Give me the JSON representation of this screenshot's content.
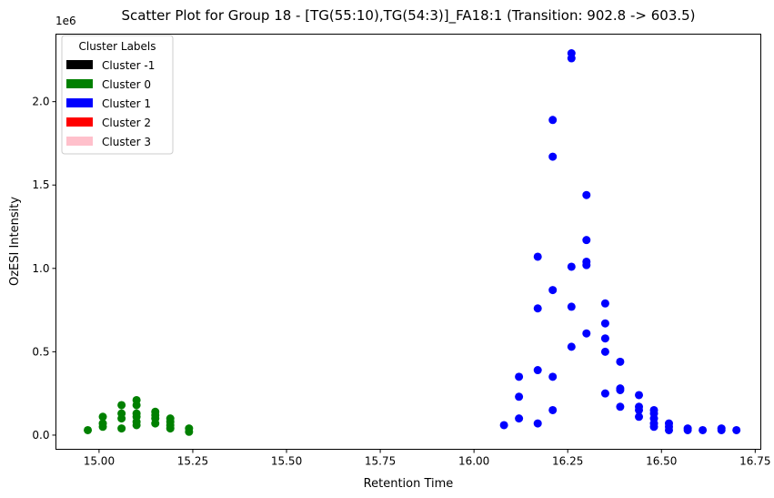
{
  "chart_data": {
    "type": "scatter",
    "title": "Scatter Plot for Group 18 - [TG(55:10),TG(54:3)]_FA18:1 (Transition: 902.8 -> 603.5)",
    "xlabel": "Retention Time",
    "ylabel": "OzESI Intensity",
    "y_multiplier_label": "1e6",
    "xlim": [
      14.885,
      16.765
    ],
    "ylim": [
      -0.085,
      2.405
    ],
    "x_ticks": [
      15.0,
      15.25,
      15.5,
      15.75,
      16.0,
      16.25,
      16.5,
      16.75
    ],
    "x_tick_labels": [
      "15.00",
      "15.25",
      "15.50",
      "15.75",
      "16.00",
      "16.25",
      "16.50",
      "16.75"
    ],
    "y_ticks": [
      0.0,
      0.5,
      1.0,
      1.5,
      2.0
    ],
    "y_tick_labels": [
      "0.0",
      "0.5",
      "1.0",
      "1.5",
      "2.0"
    ],
    "grid": false,
    "legend": {
      "title": "Cluster Labels",
      "placement": "top-left",
      "entries": [
        {
          "label": "Cluster -1",
          "color": "#000000"
        },
        {
          "label": "Cluster 0",
          "color": "#008000"
        },
        {
          "label": "Cluster 1",
          "color": "#0000ff"
        },
        {
          "label": "Cluster 2",
          "color": "#ff0000"
        },
        {
          "label": "Cluster 3",
          "color": "#ffc0cb"
        }
      ]
    },
    "series": [
      {
        "name": "Cluster 0",
        "color": "#008000",
        "points": [
          [
            14.97,
            0.03
          ],
          [
            15.01,
            0.05
          ],
          [
            15.01,
            0.07
          ],
          [
            15.01,
            0.11
          ],
          [
            15.06,
            0.04
          ],
          [
            15.06,
            0.1
          ],
          [
            15.06,
            0.13
          ],
          [
            15.06,
            0.18
          ],
          [
            15.1,
            0.06
          ],
          [
            15.1,
            0.08
          ],
          [
            15.1,
            0.11
          ],
          [
            15.1,
            0.13
          ],
          [
            15.1,
            0.18
          ],
          [
            15.1,
            0.21
          ],
          [
            15.15,
            0.07
          ],
          [
            15.15,
            0.1
          ],
          [
            15.15,
            0.12
          ],
          [
            15.15,
            0.14
          ],
          [
            15.19,
            0.04
          ],
          [
            15.19,
            0.06
          ],
          [
            15.19,
            0.08
          ],
          [
            15.19,
            0.1
          ],
          [
            15.24,
            0.02
          ],
          [
            15.24,
            0.04
          ]
        ]
      },
      {
        "name": "Cluster 1",
        "color": "#0000ff",
        "points": [
          [
            16.08,
            0.06
          ],
          [
            16.12,
            0.1
          ],
          [
            16.12,
            0.23
          ],
          [
            16.12,
            0.35
          ],
          [
            16.17,
            0.07
          ],
          [
            16.17,
            0.39
          ],
          [
            16.17,
            0.76
          ],
          [
            16.17,
            1.07
          ],
          [
            16.21,
            0.15
          ],
          [
            16.21,
            0.35
          ],
          [
            16.21,
            0.87
          ],
          [
            16.21,
            1.67
          ],
          [
            16.21,
            1.89
          ],
          [
            16.26,
            0.53
          ],
          [
            16.26,
            0.77
          ],
          [
            16.26,
            1.01
          ],
          [
            16.26,
            2.26
          ],
          [
            16.26,
            2.29
          ],
          [
            16.3,
            0.61
          ],
          [
            16.3,
            1.02
          ],
          [
            16.3,
            1.04
          ],
          [
            16.3,
            1.17
          ],
          [
            16.3,
            1.44
          ],
          [
            16.35,
            0.25
          ],
          [
            16.35,
            0.5
          ],
          [
            16.35,
            0.58
          ],
          [
            16.35,
            0.67
          ],
          [
            16.35,
            0.79
          ],
          [
            16.39,
            0.17
          ],
          [
            16.39,
            0.27
          ],
          [
            16.39,
            0.28
          ],
          [
            16.39,
            0.44
          ],
          [
            16.44,
            0.11
          ],
          [
            16.44,
            0.15
          ],
          [
            16.44,
            0.17
          ],
          [
            16.44,
            0.24
          ],
          [
            16.48,
            0.05
          ],
          [
            16.48,
            0.07
          ],
          [
            16.48,
            0.1
          ],
          [
            16.48,
            0.13
          ],
          [
            16.48,
            0.15
          ],
          [
            16.52,
            0.03
          ],
          [
            16.52,
            0.05
          ],
          [
            16.52,
            0.07
          ],
          [
            16.57,
            0.03
          ],
          [
            16.57,
            0.04
          ],
          [
            16.61,
            0.03
          ],
          [
            16.66,
            0.03
          ],
          [
            16.66,
            0.04
          ],
          [
            16.7,
            0.03
          ]
        ]
      }
    ]
  }
}
